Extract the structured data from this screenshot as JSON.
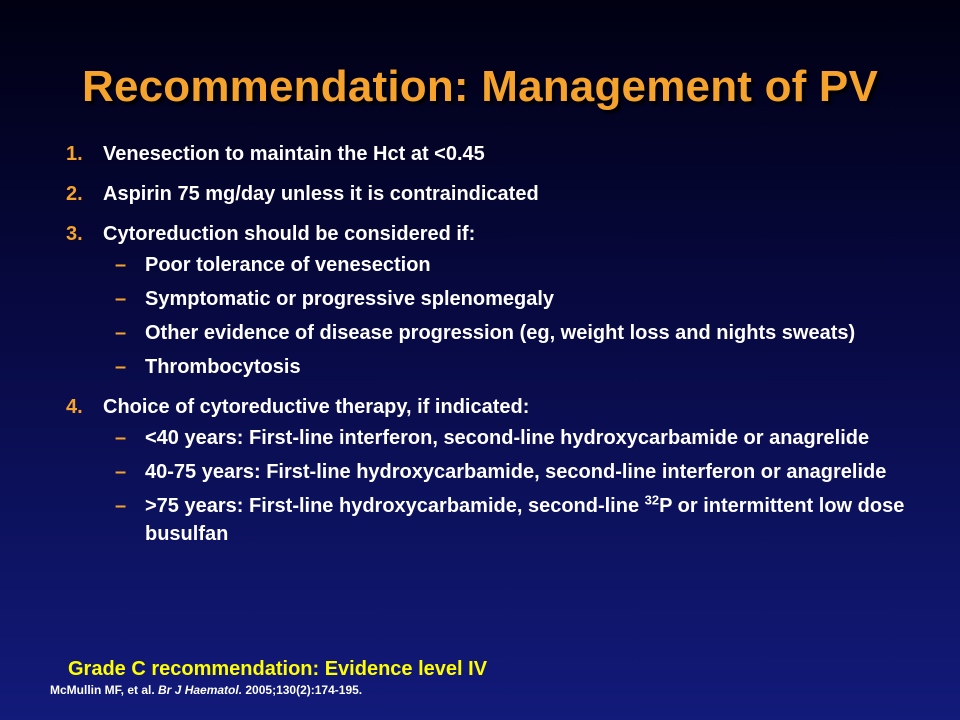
{
  "title": "Recommendation: Management of PV",
  "items": [
    {
      "num": "1.",
      "text": "Venesection to maintain the Hct at <0.45"
    },
    {
      "num": "2.",
      "text": "Aspirin 75 mg/day unless it is contraindicated"
    },
    {
      "num": "3.",
      "text": "Cytoreduction should be considered if:",
      "subitems": [
        "Poor tolerance of venesection",
        "Symptomatic or progressive splenomegaly",
        "Other evidence of disease progression (eg, weight loss and nights sweats)",
        "Thrombocytosis"
      ]
    },
    {
      "num": "4.",
      "text": "Choice of cytoreductive therapy, if indicated:",
      "subitems": [
        "<40 years: First-line interferon, second-line hydroxycarbamide or anagrelide",
        "40-75 years: First-line hydroxycarbamide, second-line interferon or anagrelide"
      ],
      "last_sub": {
        "pre": ">75 years: First-line hydroxycarbamide, second-line ",
        "sup": "32",
        "post": "P or intermittent low dose busulfan"
      }
    }
  ],
  "dash": "–",
  "grade": "Grade C recommendation: Evidence level IV",
  "citation": {
    "authors": "McMullin MF, et al. ",
    "journal": "Br J Haematol.",
    "details": " 2005;130(2):174-195."
  },
  "colors": {
    "accent": "#f5a32d",
    "grade": "#ffff00",
    "text": "#ffffff",
    "bg_top": "#000012",
    "bg_bottom": "#121a7a"
  }
}
